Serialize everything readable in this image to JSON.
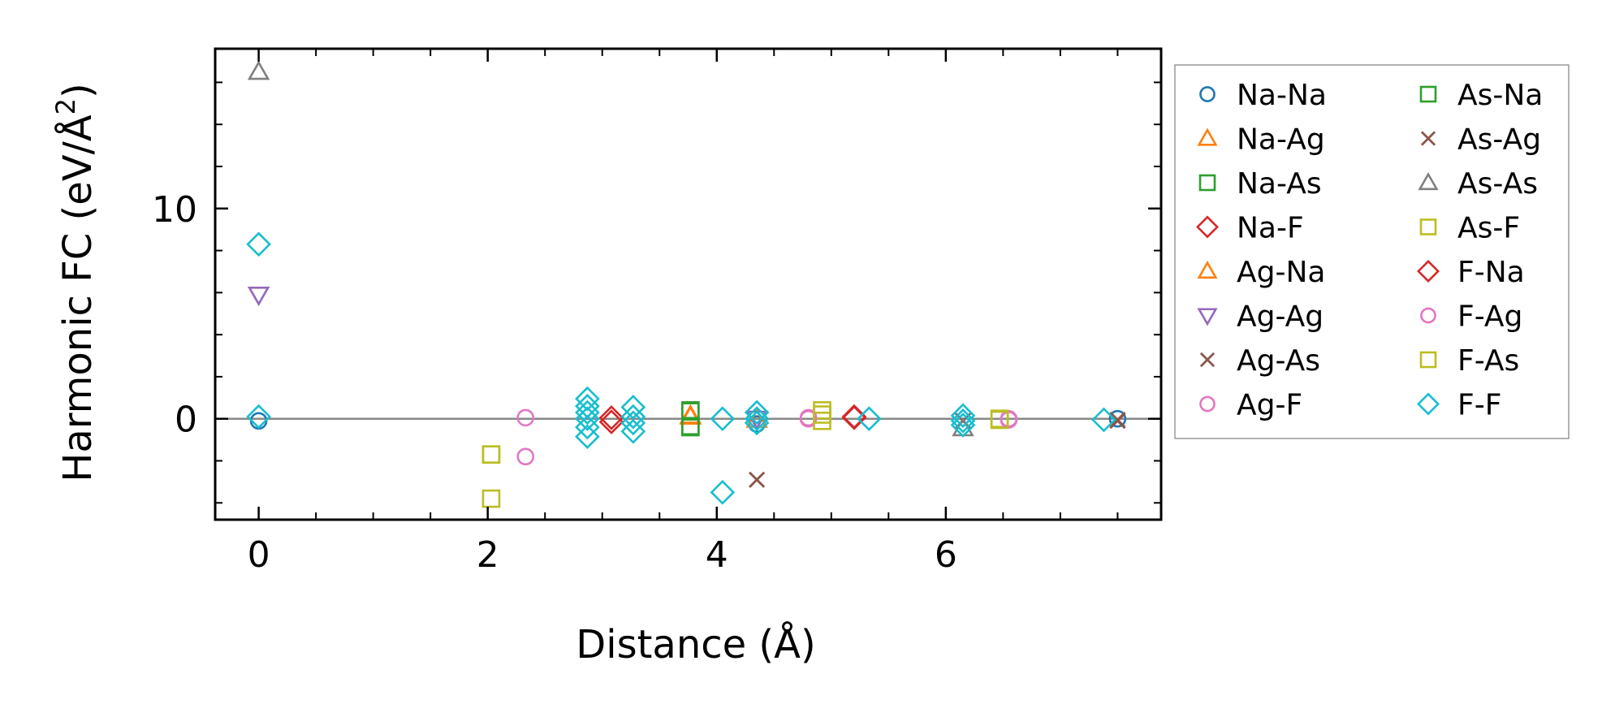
{
  "chart_data": {
    "type": "scatter",
    "xlabel": "Distance (Å)",
    "ylabel": "Harmonic FC (eV/Å²)",
    "ylabel_main": "Harmonic FC (eV/Å",
    "ylabel_sup": "2",
    "ylabel_close": ")",
    "xlim": [
      -0.38,
      7.88
    ],
    "ylim": [
      -4.8,
      17.6
    ],
    "xticks": [
      0,
      2,
      4,
      6
    ],
    "xtick_labels": [
      "0",
      "2",
      "4",
      "6"
    ],
    "yticks": [
      0,
      10
    ],
    "ytick_labels": [
      "0",
      "10"
    ],
    "x_minor_step": 0.5,
    "y_minor_step": 2,
    "zero_line": true,
    "legend_position": "right, outside",
    "series": [
      {
        "name": "Na-Na",
        "marker": "circle",
        "color": "#1f77b4",
        "points": [
          [
            0,
            -0.1
          ],
          [
            4.35,
            -0.25
          ],
          [
            7.5,
            0
          ]
        ]
      },
      {
        "name": "Na-Ag",
        "marker": "triangle-up",
        "color": "#ff7f0e",
        "points": [
          [
            3.77,
            0.15
          ],
          [
            4.35,
            -0.05
          ]
        ]
      },
      {
        "name": "Na-As",
        "marker": "square",
        "color": "#2ca02c",
        "points": [
          [
            3.77,
            0.4
          ],
          [
            3.77,
            -0.4
          ]
        ]
      },
      {
        "name": "Na-F",
        "marker": "diamond",
        "color": "#d62728",
        "points": [
          [
            3.08,
            -0.15
          ],
          [
            5.2,
            0.05
          ]
        ]
      },
      {
        "name": "Ag-Na",
        "marker": "triangle-up",
        "color": "#ff7f0e",
        "points": [
          [
            3.77,
            0.1
          ]
        ]
      },
      {
        "name": "Ag-Ag",
        "marker": "triangle-down",
        "color": "#9467bd",
        "points": [
          [
            0,
            5.9
          ],
          [
            4.35,
            0
          ]
        ]
      },
      {
        "name": "Ag-As",
        "marker": "x",
        "color": "#8c564b",
        "points": [
          [
            4.35,
            -2.9
          ],
          [
            6.15,
            -0.1
          ],
          [
            7.5,
            -0.05
          ]
        ]
      },
      {
        "name": "Ag-F",
        "marker": "circle",
        "color": "#e377c2",
        "points": [
          [
            2.33,
            0.05
          ],
          [
            4.8,
            0
          ],
          [
            6.55,
            0
          ]
        ]
      },
      {
        "name": "As-Na",
        "marker": "square",
        "color": "#2ca02c",
        "points": [
          [
            3.77,
            0.35
          ],
          [
            3.77,
            -0.35
          ]
        ]
      },
      {
        "name": "As-Ag",
        "marker": "x",
        "color": "#8c564b",
        "points": [
          [
            4.35,
            -2.9
          ],
          [
            7.5,
            -0.1
          ]
        ]
      },
      {
        "name": "As-As",
        "marker": "triangle-up",
        "color": "#7f7f7f",
        "points": [
          [
            0,
            16.5
          ],
          [
            6.15,
            -0.45
          ]
        ]
      },
      {
        "name": "As-F",
        "marker": "square",
        "color": "#bcbd22",
        "points": [
          [
            2.03,
            -1.7
          ],
          [
            2.03,
            -3.8
          ],
          [
            4.92,
            0.4
          ],
          [
            4.92,
            -0.1
          ],
          [
            6.47,
            0
          ]
        ]
      },
      {
        "name": "F-Na",
        "marker": "diamond",
        "color": "#d62728",
        "points": [
          [
            3.08,
            0.05
          ],
          [
            5.2,
            0.1
          ]
        ]
      },
      {
        "name": "F-Ag",
        "marker": "circle",
        "color": "#e377c2",
        "points": [
          [
            2.33,
            -1.8
          ],
          [
            4.8,
            0.05
          ],
          [
            6.55,
            -0.05
          ]
        ]
      },
      {
        "name": "F-As",
        "marker": "square",
        "color": "#bcbd22",
        "points": [
          [
            2.03,
            -1.7
          ],
          [
            4.92,
            0.2
          ],
          [
            6.47,
            -0.05
          ]
        ]
      },
      {
        "name": "F-F",
        "marker": "diamond",
        "color": "#17becf",
        "points": [
          [
            0,
            8.3
          ],
          [
            0,
            0.1
          ],
          [
            2.87,
            0.95
          ],
          [
            2.87,
            0.6
          ],
          [
            2.87,
            0.3
          ],
          [
            2.87,
            0
          ],
          [
            2.87,
            -0.4
          ],
          [
            2.87,
            -0.85
          ],
          [
            3.27,
            0.55
          ],
          [
            3.27,
            0.1
          ],
          [
            3.27,
            -0.2
          ],
          [
            3.27,
            -0.6
          ],
          [
            4.05,
            0
          ],
          [
            4.05,
            -3.5
          ],
          [
            4.35,
            0.3
          ],
          [
            4.35,
            0
          ],
          [
            4.35,
            -0.2
          ],
          [
            5.33,
            0
          ],
          [
            6.15,
            0.15
          ],
          [
            6.15,
            -0.1
          ],
          [
            6.15,
            -0.3
          ],
          [
            7.38,
            -0.05
          ]
        ]
      }
    ]
  }
}
